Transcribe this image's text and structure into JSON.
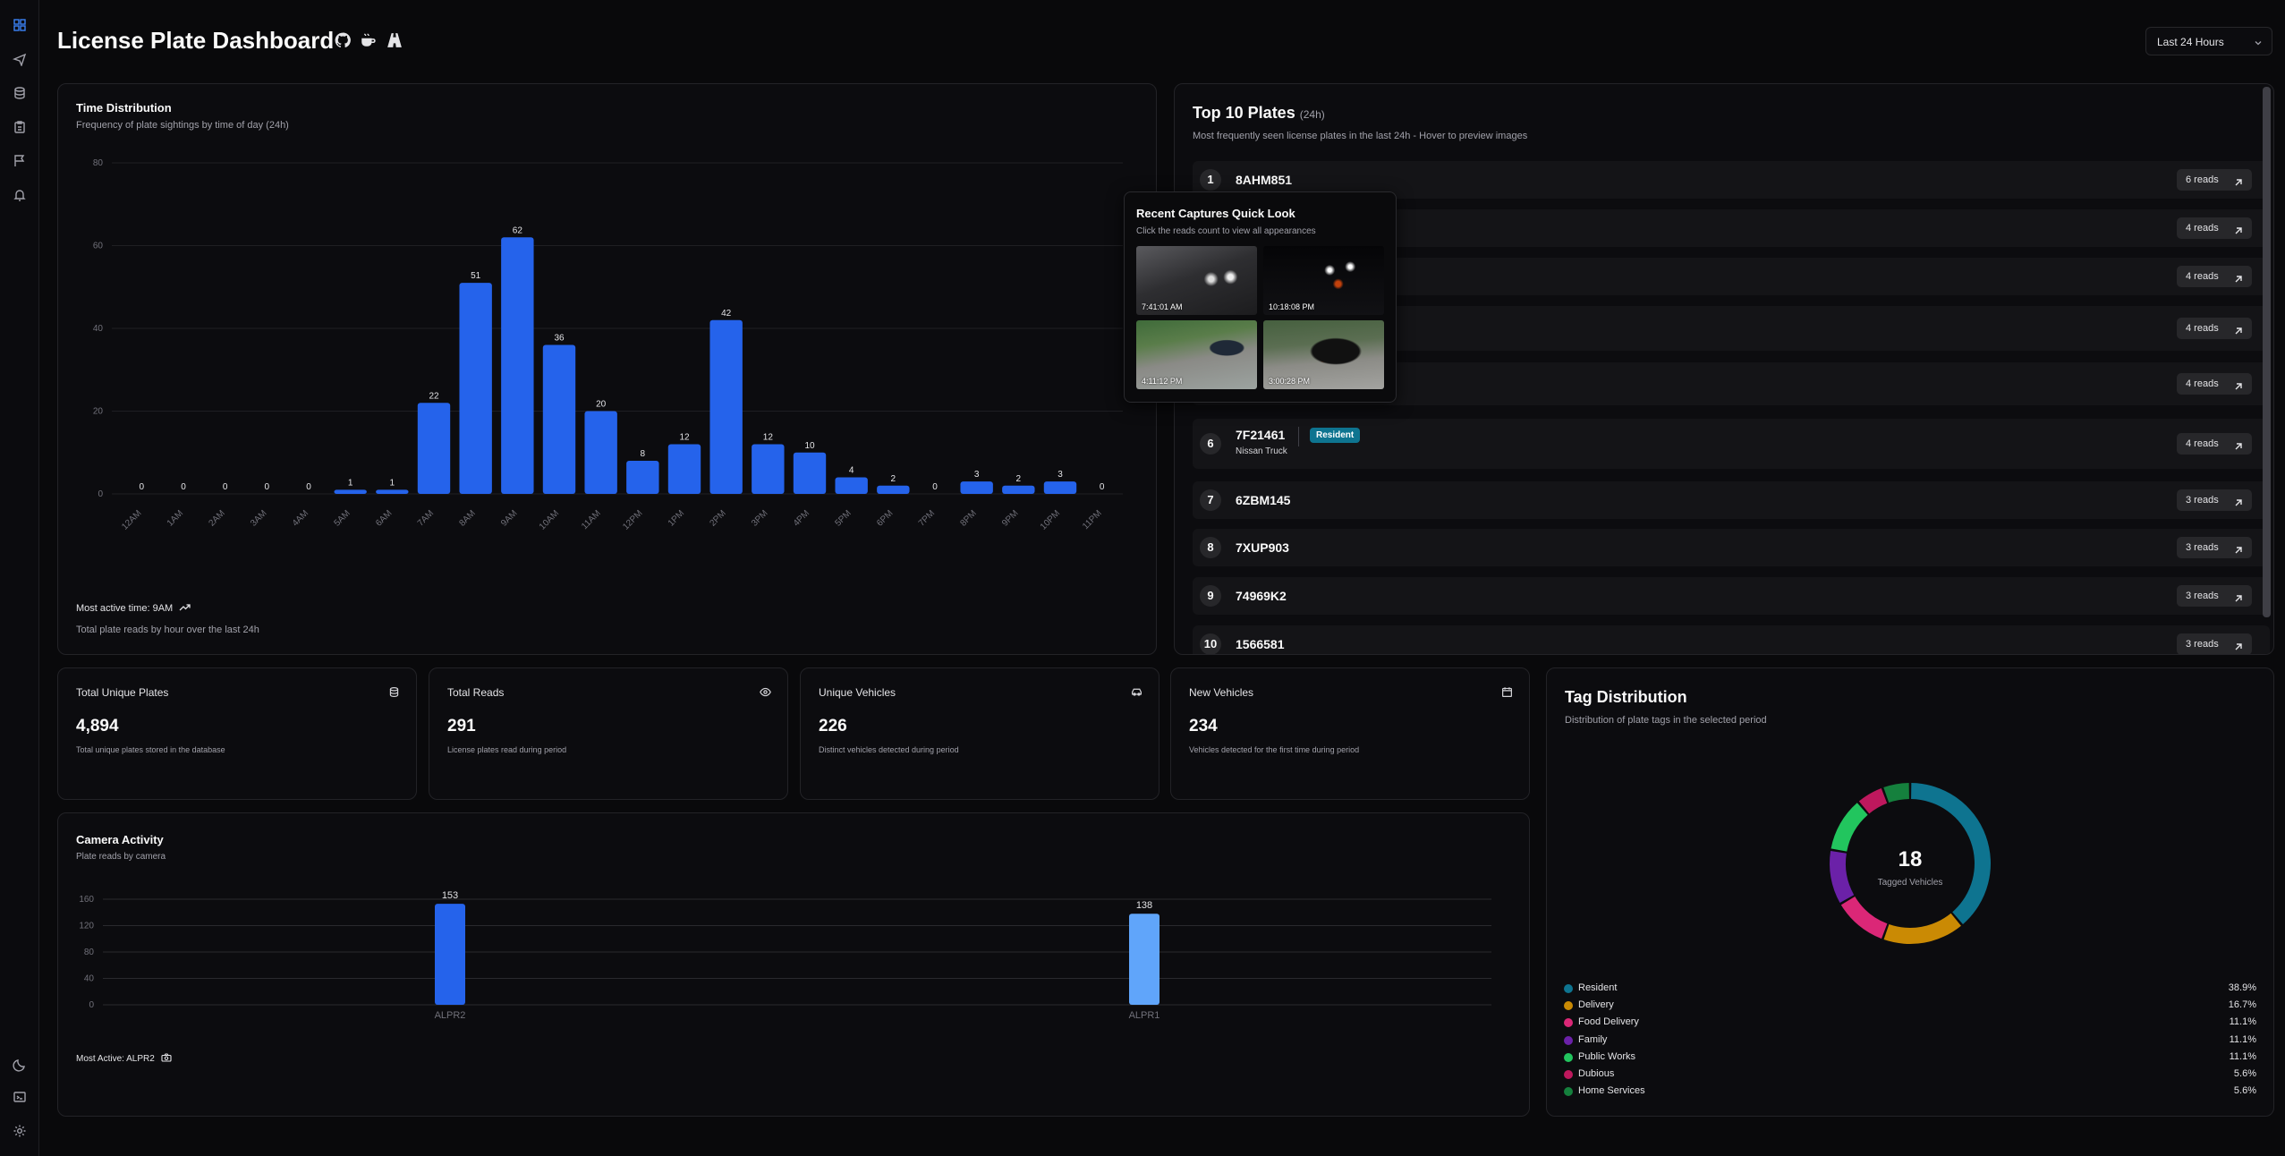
{
  "header": {
    "title": "License Plate Dashboard",
    "range": "Last 24 Hours"
  },
  "sidebar": {
    "icons": [
      "dashboard-icon",
      "send-icon",
      "database-icon",
      "clipboard-icon",
      "flag-icon",
      "bell-icon",
      "moon-icon",
      "terminal-icon",
      "settings-icon"
    ]
  },
  "time_distribution": {
    "title": "Time Distribution",
    "subtitle": "Frequency of plate sightings by time of day (24h)",
    "most_active": "Most active time: 9AM",
    "footer": "Total plate reads by hour over the last 24h"
  },
  "top_plates": {
    "title": "Top 10 Plates",
    "badge": "(24h)",
    "subtitle": "Most frequently seen license plates in the last 24h - Hover to preview images",
    "items": [
      {
        "rank": "1",
        "plate": "8AHM851",
        "vehicle": "",
        "tag": "",
        "reads": "6 reads"
      },
      {
        "rank": "2",
        "plate": "",
        "vehicle": "",
        "tag": "",
        "reads": "4 reads"
      },
      {
        "rank": "3",
        "plate": "",
        "vehicle": "",
        "tag": "",
        "reads": "4 reads"
      },
      {
        "rank": "4",
        "plate": "",
        "vehicle": "",
        "tag": "",
        "reads": "4 reads"
      },
      {
        "rank": "5",
        "plate": "",
        "vehicle": "",
        "tag": "",
        "reads": "4 reads"
      },
      {
        "rank": "6",
        "plate": "7F21461",
        "vehicle": "Nissan Truck",
        "tag": "Resident",
        "reads": "4 reads"
      },
      {
        "rank": "7",
        "plate": "6ZBM145",
        "vehicle": "",
        "tag": "",
        "reads": "3 reads"
      },
      {
        "rank": "8",
        "plate": "7XUP903",
        "vehicle": "",
        "tag": "",
        "reads": "3 reads"
      },
      {
        "rank": "9",
        "plate": "74969K2",
        "vehicle": "",
        "tag": "",
        "reads": "3 reads"
      },
      {
        "rank": "10",
        "plate": "1566581",
        "vehicle": "",
        "tag": "",
        "reads": "3 reads"
      }
    ]
  },
  "popup": {
    "title": "Recent Captures Quick Look",
    "subtitle": "Click the reads count to view all appearances",
    "captures": [
      "7:41:01 AM",
      "10:18:08 PM",
      "4:11:12 PM",
      "3:00:28 PM"
    ]
  },
  "stats": [
    {
      "title": "Total Unique Plates",
      "value": "4,894",
      "desc": "Total unique plates stored in the database",
      "icon": "database-icon"
    },
    {
      "title": "Total Reads",
      "value": "291",
      "desc": "License plates read during period",
      "icon": "eye-icon"
    },
    {
      "title": "Unique Vehicles",
      "value": "226",
      "desc": "Distinct vehicles detected during period",
      "icon": "car-icon"
    },
    {
      "title": "New Vehicles",
      "value": "234",
      "desc": "Vehicles detected for the first time during period",
      "icon": "calendar-icon"
    }
  ],
  "camera_activity": {
    "title": "Camera Activity",
    "subtitle": "Plate reads by camera",
    "most_active": "Most Active: ALPR2"
  },
  "tag_distribution": {
    "title": "Tag Distribution",
    "subtitle": "Distribution of plate tags in the selected period",
    "center_value": "18",
    "center_label": "Tagged Vehicles",
    "items": [
      {
        "name": "Resident",
        "pct": "38.9%",
        "value": 38.9,
        "color": "#0e7490"
      },
      {
        "name": "Delivery",
        "pct": "16.7%",
        "value": 16.7,
        "color": "#ca8a04"
      },
      {
        "name": "Food Delivery",
        "pct": "11.1%",
        "value": 11.1,
        "color": "#db2777"
      },
      {
        "name": "Family",
        "pct": "11.1%",
        "value": 11.1,
        "color": "#6b21a8"
      },
      {
        "name": "Public Works",
        "pct": "11.1%",
        "value": 11.1,
        "color": "#22c55e"
      },
      {
        "name": "Dubious",
        "pct": "5.6%",
        "value": 5.6,
        "color": "#be185d"
      },
      {
        "name": "Home Services",
        "pct": "5.6%",
        "value": 5.6,
        "color": "#15803d"
      }
    ]
  },
  "chart_data": [
    {
      "type": "bar",
      "categories": [
        "12AM",
        "1AM",
        "2AM",
        "3AM",
        "4AM",
        "5AM",
        "6AM",
        "7AM",
        "8AM",
        "9AM",
        "10AM",
        "11AM",
        "12PM",
        "1PM",
        "2PM",
        "3PM",
        "4PM",
        "5PM",
        "6PM",
        "7PM",
        "8PM",
        "9PM",
        "10PM",
        "11PM"
      ],
      "values": [
        0,
        0,
        0,
        0,
        0,
        1,
        1,
        22,
        51,
        62,
        36,
        20,
        8,
        12,
        42,
        12,
        10,
        4,
        2,
        0,
        3,
        2,
        3,
        0
      ],
      "ylim": [
        0,
        80
      ],
      "yticks": [
        0,
        20,
        40,
        60,
        80
      ],
      "color": "#2563eb"
    },
    {
      "type": "bar",
      "categories": [
        "ALPR2",
        "ALPR1"
      ],
      "values": [
        153,
        138
      ],
      "ylim": [
        0,
        160
      ],
      "yticks": [
        0,
        40,
        80,
        120,
        160
      ],
      "colors": [
        "#2563eb",
        "#60a5fa"
      ]
    }
  ]
}
